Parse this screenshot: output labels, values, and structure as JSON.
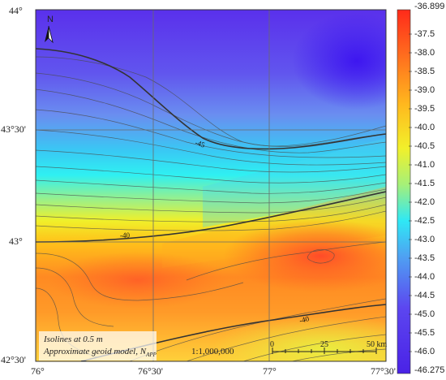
{
  "map": {
    "north_label": "N",
    "lat_labels": [
      "44°",
      "43°30'",
      "43°",
      "42°30'"
    ],
    "lon_labels": [
      "76°",
      "76°30'",
      "77°",
      "77°30'"
    ],
    "contour_labels": [
      "-45",
      "-40",
      "-40"
    ],
    "legend": {
      "line1": "Isolines at 0.5 m",
      "line2_prefix": "Approximate geoid model, N",
      "line2_subscript": "APP"
    },
    "scale": {
      "ratio": "1:1,000,000",
      "ticks": [
        "0",
        "25",
        "50 km"
      ]
    },
    "colors": {
      "min": "#4a22e6",
      "mid": "#2fe8f5",
      "max": "#ff2a1a"
    }
  },
  "colorbar": {
    "labels": [
      "-36.899",
      "-37.5",
      "-38.0",
      "-38.5",
      "-39.0",
      "-39.5",
      "-40.0",
      "-40.5",
      "-41.0",
      "-41.5",
      "-42.0",
      "-42.5",
      "-43.0",
      "-43.5",
      "-44.0",
      "-44.5",
      "-45.0",
      "-45.5",
      "-46.0",
      "-46.275"
    ]
  }
}
